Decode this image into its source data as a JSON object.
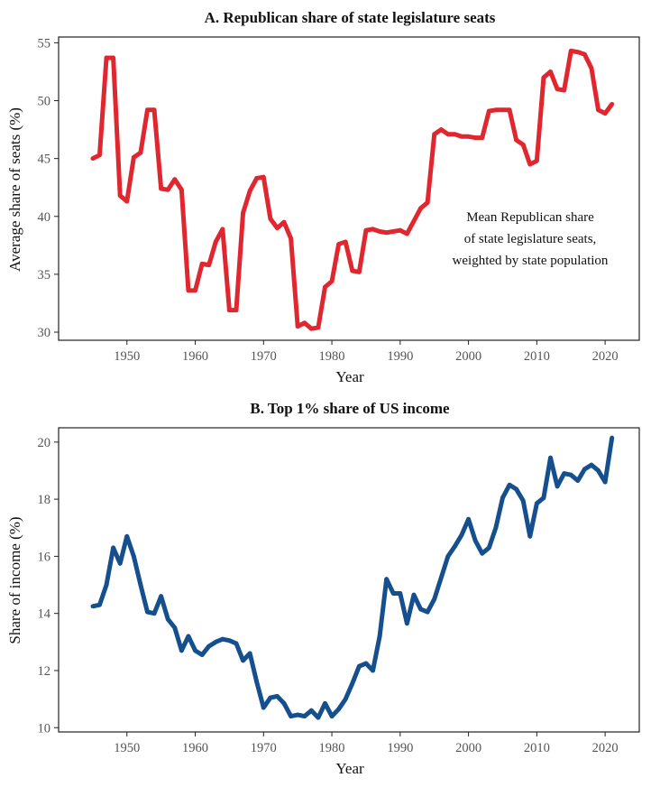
{
  "chart_data": [
    {
      "type": "line",
      "title": "A.  Republican share of state legislature seats",
      "xlabel": "Year",
      "ylabel": "Average share of seats (%)",
      "xlim": [
        1940,
        2025
      ],
      "ylim": [
        29.3,
        55.5
      ],
      "xticks": [
        1950,
        1960,
        1970,
        1980,
        1990,
        2000,
        2010,
        2020
      ],
      "yticks": [
        30,
        35,
        40,
        45,
        50,
        55
      ],
      "color": "#e0262e",
      "annotation": [
        "Mean Republican share",
        "of state legislature seats,",
        "weighted by state population"
      ],
      "grid": false,
      "series": [
        {
          "x": [
            1945,
            1946,
            1947,
            1948,
            1949,
            1950,
            1951,
            1952,
            1953,
            1954,
            1955,
            1956,
            1957,
            1958,
            1959,
            1960,
            1961,
            1962,
            1963,
            1964,
            1965,
            1966,
            1967,
            1968,
            1969,
            1970,
            1971,
            1972,
            1973,
            1974,
            1975,
            1976,
            1977,
            1978,
            1979,
            1980,
            1981,
            1982,
            1983,
            1984,
            1985,
            1986,
            1987,
            1988,
            1989,
            1990,
            1991,
            1992,
            1993,
            1994,
            1995,
            1996,
            1997,
            1998,
            1999,
            2000,
            2001,
            2002,
            2003,
            2004,
            2005,
            2006,
            2007,
            2008,
            2009,
            2010,
            2011,
            2012,
            2013,
            2014,
            2015,
            2016,
            2017,
            2018,
            2019,
            2020,
            2021
          ],
          "y": [
            45.0,
            45.3,
            53.7,
            53.7,
            41.8,
            41.3,
            45.1,
            45.5,
            49.2,
            49.2,
            42.4,
            42.3,
            43.2,
            42.3,
            33.6,
            33.6,
            35.9,
            35.8,
            37.8,
            38.9,
            31.9,
            31.9,
            40.3,
            42.2,
            43.3,
            43.4,
            39.8,
            39.0,
            39.5,
            38.1,
            30.5,
            30.8,
            30.3,
            30.4,
            33.9,
            34.4,
            37.6,
            37.8,
            35.3,
            35.2,
            38.8,
            38.9,
            38.7,
            38.6,
            38.7,
            38.8,
            38.5,
            39.6,
            40.7,
            41.2,
            47.1,
            47.5,
            47.1,
            47.1,
            46.9,
            46.9,
            46.8,
            46.8,
            49.1,
            49.2,
            49.2,
            49.2,
            46.6,
            46.2,
            44.5,
            44.8,
            52.0,
            52.5,
            51.0,
            50.9,
            54.3,
            54.2,
            54.0,
            52.8,
            49.2,
            48.9,
            49.7
          ]
        }
      ]
    },
    {
      "type": "line",
      "title": "B.  Top 1% share of US income",
      "xlabel": "Year",
      "ylabel": "Share of income (%)",
      "xlim": [
        1940,
        2025
      ],
      "ylim": [
        9.85,
        20.5
      ],
      "xticks": [
        1950,
        1960,
        1970,
        1980,
        1990,
        2000,
        2010,
        2020
      ],
      "yticks": [
        10,
        12,
        14,
        16,
        18,
        20
      ],
      "color": "#154f8d",
      "grid": false,
      "series": [
        {
          "x": [
            1945,
            1946,
            1947,
            1948,
            1949,
            1950,
            1951,
            1952,
            1953,
            1954,
            1955,
            1956,
            1957,
            1958,
            1959,
            1960,
            1961,
            1962,
            1963,
            1964,
            1965,
            1966,
            1967,
            1968,
            1969,
            1970,
            1971,
            1972,
            1973,
            1974,
            1975,
            1976,
            1977,
            1978,
            1979,
            1980,
            1981,
            1982,
            1983,
            1984,
            1985,
            1986,
            1987,
            1988,
            1989,
            1990,
            1991,
            1992,
            1993,
            1994,
            1995,
            1996,
            1997,
            1998,
            1999,
            2000,
            2001,
            2002,
            2003,
            2004,
            2005,
            2006,
            2007,
            2008,
            2009,
            2010,
            2011,
            2012,
            2013,
            2014,
            2015,
            2016,
            2017,
            2018,
            2019,
            2020,
            2021
          ],
          "y": [
            14.25,
            14.3,
            15.0,
            16.3,
            15.75,
            16.7,
            16.0,
            15.0,
            14.05,
            14.0,
            14.6,
            13.8,
            13.5,
            12.7,
            13.2,
            12.7,
            12.55,
            12.85,
            13.0,
            13.1,
            13.05,
            12.95,
            12.35,
            12.6,
            11.6,
            10.7,
            11.05,
            11.1,
            10.85,
            10.4,
            10.45,
            10.4,
            10.6,
            10.35,
            10.85,
            10.4,
            10.65,
            11.0,
            11.55,
            12.15,
            12.25,
            12.0,
            13.2,
            15.2,
            14.7,
            14.7,
            13.65,
            14.65,
            14.15,
            14.05,
            14.5,
            15.25,
            16.0,
            16.35,
            16.75,
            17.3,
            16.55,
            16.1,
            16.3,
            17.0,
            18.05,
            18.5,
            18.35,
            17.95,
            16.7,
            17.85,
            18.05,
            19.45,
            18.45,
            18.9,
            18.85,
            18.65,
            19.05,
            19.2,
            19.0,
            18.6,
            20.15
          ]
        }
      ]
    }
  ]
}
